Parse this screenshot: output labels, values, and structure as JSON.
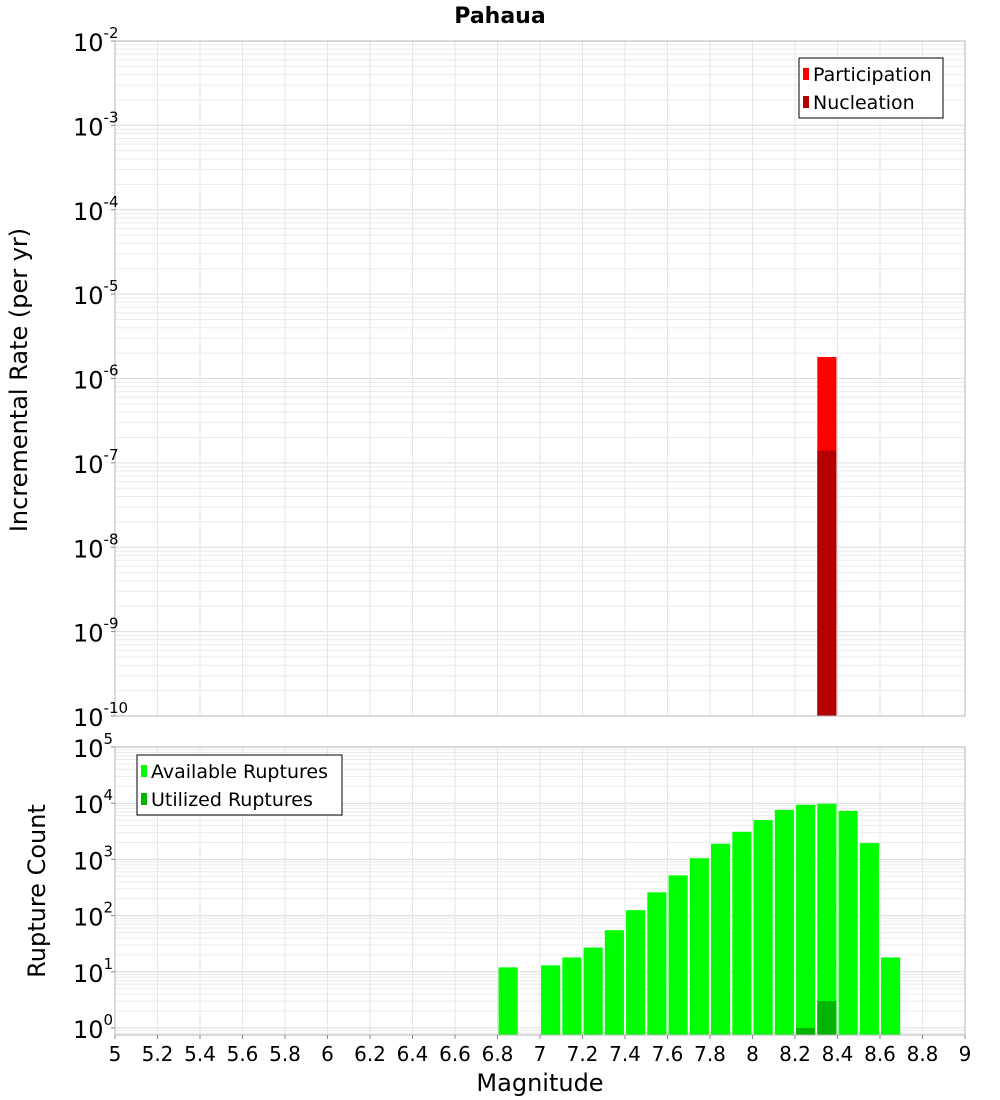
{
  "chart_data": {
    "title": "Pahaua",
    "xlabel": "Magnitude",
    "xlim": [
      5,
      9
    ],
    "x_ticks": [
      "5",
      "5.2",
      "5.4",
      "5.6",
      "5.8",
      "6",
      "6.2",
      "6.4",
      "6.6",
      "6.8",
      "7",
      "7.2",
      "7.4",
      "7.6",
      "7.8",
      "8",
      "8.2",
      "8.4",
      "8.6",
      "8.8",
      "9"
    ],
    "panels": [
      {
        "type": "bar",
        "ylabel": "Incremental Rate (per yr)",
        "yscale": "log",
        "ylim": [
          1e-10,
          0.01
        ],
        "y_ticks": [
          {
            "base": "10",
            "exp": "-2"
          },
          {
            "base": "10",
            "exp": "-3"
          },
          {
            "base": "10",
            "exp": "-4"
          },
          {
            "base": "10",
            "exp": "-5"
          },
          {
            "base": "10",
            "exp": "-6"
          },
          {
            "base": "10",
            "exp": "-7"
          },
          {
            "base": "10",
            "exp": "-8"
          },
          {
            "base": "10",
            "exp": "-9"
          },
          {
            "base": "10",
            "exp": "-10"
          }
        ],
        "legend_position": "top-right",
        "grid": true,
        "series": [
          {
            "name": "Participation",
            "color": "#ff0000",
            "x": [
              8.35
            ],
            "y": [
              1.8e-06
            ]
          },
          {
            "name": "Nucleation",
            "color": "#b40000",
            "x": [
              8.35
            ],
            "y": [
              1.4e-07
            ]
          }
        ]
      },
      {
        "type": "bar",
        "ylabel": "Rupture Count",
        "yscale": "log",
        "ylim": [
          0.75,
          100000
        ],
        "y_ticks": [
          {
            "base": "10",
            "exp": "5"
          },
          {
            "base": "10",
            "exp": "4"
          },
          {
            "base": "10",
            "exp": "3"
          },
          {
            "base": "10",
            "exp": "2"
          },
          {
            "base": "10",
            "exp": "1"
          },
          {
            "base": "10",
            "exp": "0"
          }
        ],
        "legend_position": "top-left",
        "grid": true,
        "series": [
          {
            "name": "Available Ruptures",
            "color": "#00ff00",
            "x": [
              6.85,
              7.05,
              7.15,
              7.25,
              7.35,
              7.45,
              7.55,
              7.65,
              7.75,
              7.85,
              7.95,
              8.05,
              8.15,
              8.25,
              8.35,
              8.45,
              8.55,
              8.65
            ],
            "y": [
              12,
              13,
              18,
              27,
              55,
              125,
              260,
              520,
              1050,
              1900,
              3100,
              5000,
              7600,
              9400,
              9800,
              7300,
              1950,
              18
            ]
          },
          {
            "name": "Utilized Ruptures",
            "color": "#00b400",
            "x": [
              8.25,
              8.35
            ],
            "y": [
              1,
              3
            ]
          }
        ]
      }
    ]
  }
}
